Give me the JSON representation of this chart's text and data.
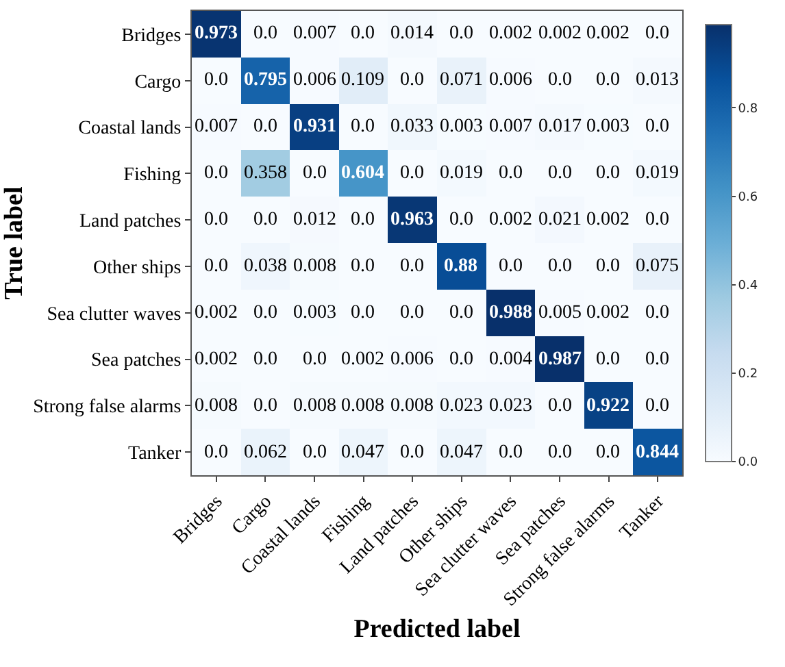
{
  "chart_data": {
    "type": "heatmap",
    "xlabel": "Predicted label",
    "ylabel": "True label",
    "categories": [
      "Bridges",
      "Cargo",
      "Coastal lands",
      "Fishing",
      "Land patches",
      "Other ships",
      "Sea clutter waves",
      "Sea patches",
      "Strong false alarms",
      "Tanker"
    ],
    "y_categories": [
      "Bridges",
      "Cargo",
      "Coastal lands",
      "Fishing",
      "Land patches",
      "Other ships",
      "Sea clutter waves",
      "Sea patches",
      "Strong false alarms",
      "Tanker"
    ],
    "cells": [
      [
        0.973,
        0,
        0.007,
        0,
        0.014,
        0,
        0.002,
        0.002,
        0.002,
        0
      ],
      [
        0,
        0.795,
        0.006,
        0.109,
        0,
        0.071,
        0.006,
        0,
        0,
        0.013
      ],
      [
        0.007,
        0,
        0.931,
        0,
        0.033,
        0.003,
        0.007,
        0.017,
        0.003,
        0
      ],
      [
        0,
        0.358,
        0,
        0.604,
        0,
        0.019,
        0,
        0,
        0,
        0.019
      ],
      [
        0,
        0,
        0.012,
        0,
        0.963,
        0,
        0.002,
        0.021,
        0.002,
        0
      ],
      [
        0,
        0.038,
        0.008,
        0,
        0,
        0.88,
        0,
        0,
        0,
        0.075
      ],
      [
        0.002,
        0,
        0.003,
        0,
        0,
        0,
        0.988,
        0.005,
        0.002,
        0
      ],
      [
        0.002,
        0,
        0,
        0.002,
        0.006,
        0,
        0.004,
        0.987,
        0,
        0
      ],
      [
        0.008,
        0,
        0.008,
        0.008,
        0.008,
        0.023,
        0.023,
        0,
        0.922,
        0
      ],
      [
        0,
        0.062,
        0,
        0.047,
        0,
        0.047,
        0,
        0,
        0,
        0.844
      ]
    ],
    "cell_labels": [
      [
        "0.973",
        "0.0",
        "0.007",
        "0.0",
        "0.014",
        "0.0",
        "0.002",
        "0.002",
        "0.002",
        "0.0"
      ],
      [
        "0.0",
        "0.795",
        "0.006",
        "0.109",
        "0.0",
        "0.071",
        "0.006",
        "0.0",
        "0.0",
        "0.013"
      ],
      [
        "0.007",
        "0.0",
        "0.931",
        "0.0",
        "0.033",
        "0.003",
        "0.007",
        "0.017",
        "0.003",
        "0.0"
      ],
      [
        "0.0",
        "0.358",
        "0.0",
        "0.604",
        "0.0",
        "0.019",
        "0.0",
        "0.0",
        "0.0",
        "0.019"
      ],
      [
        "0.0",
        "0.0",
        "0.012",
        "0.0",
        "0.963",
        "0.0",
        "0.002",
        "0.021",
        "0.002",
        "0.0"
      ],
      [
        "0.0",
        "0.038",
        "0.008",
        "0.0",
        "0.0",
        "0.88",
        "0.0",
        "0.0",
        "0.0",
        "0.075"
      ],
      [
        "0.002",
        "0.0",
        "0.003",
        "0.0",
        "0.0",
        "0.0",
        "0.988",
        "0.005",
        "0.002",
        "0.0"
      ],
      [
        "0.002",
        "0.0",
        "0.0",
        "0.002",
        "0.006",
        "0.0",
        "0.004",
        "0.987",
        "0.0",
        "0.0"
      ],
      [
        "0.008",
        "0.0",
        "0.008",
        "0.008",
        "0.008",
        "0.023",
        "0.023",
        "0.0",
        "0.922",
        "0.0"
      ],
      [
        "0.0",
        "0.062",
        "0.0",
        "0.047",
        "0.0",
        "0.047",
        "0.0",
        "0.0",
        "0.0",
        "0.844"
      ]
    ],
    "clim": [
      0,
      0.988
    ],
    "cticks": [
      {
        "value": 0,
        "label": "0.0"
      },
      0.2,
      0.4,
      0.6,
      0.8
    ]
  }
}
